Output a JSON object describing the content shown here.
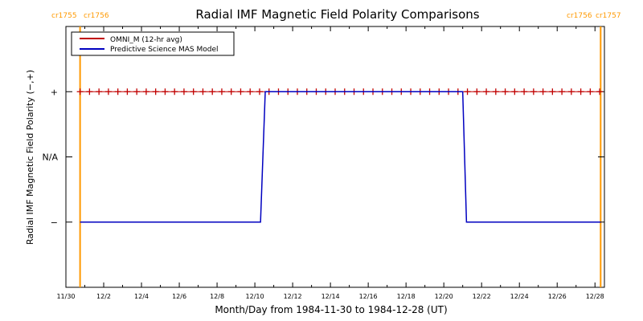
{
  "chart_data": {
    "type": "line",
    "title": "Radial IMF Magnetic Field Polarity Comparisons",
    "xlabel": "Month/Day from 1984-11-30 to 1984-12-28 (UT)",
    "ylabel": "Radial IMF Magnetic Field Polarity (−,+)",
    "x_tick_labels": [
      "11/30",
      "12/2",
      "12/4",
      "12/6",
      "12/8",
      "12/10",
      "12/12",
      "12/14",
      "12/16",
      "12/18",
      "12/20",
      "12/22",
      "12/24",
      "12/26",
      "12/28"
    ],
    "y_tick_labels": [
      "+",
      "N/A",
      "−"
    ],
    "ylim": [
      -2,
      2
    ],
    "xlim": [
      0,
      28.5
    ],
    "carrington_markers": [
      {
        "day": 0.75,
        "label_left": "cr1755",
        "label_right": "cr1756"
      },
      {
        "day": 28.3,
        "label_left": "cr1756",
        "label_right": "cr1757"
      }
    ],
    "series": [
      {
        "name": "OMNI_M (12-hr avg)",
        "color": "#c00000",
        "marker": "+",
        "x": [
          0.75,
          1.25,
          1.75,
          2.25,
          2.75,
          3.25,
          3.75,
          4.25,
          4.75,
          5.25,
          5.75,
          6.25,
          6.75,
          7.25,
          7.75,
          8.25,
          8.75,
          9.25,
          9.75,
          10.25,
          10.75,
          11.25,
          11.75,
          12.25,
          12.75,
          13.25,
          13.75,
          14.25,
          14.75,
          15.25,
          15.75,
          16.25,
          16.75,
          17.25,
          17.75,
          18.25,
          18.75,
          19.25,
          19.75,
          20.25,
          20.75,
          21.25,
          21.75,
          22.25,
          22.75,
          23.25,
          23.75,
          24.25,
          24.75,
          25.25,
          25.75,
          26.25,
          26.75,
          27.25,
          27.75,
          28.25
        ],
        "y": [
          1,
          1,
          1,
          1,
          1,
          1,
          1,
          1,
          1,
          1,
          1,
          1,
          1,
          1,
          1,
          1,
          1,
          1,
          1,
          1,
          1,
          1,
          1,
          1,
          1,
          1,
          1,
          1,
          1,
          1,
          1,
          1,
          1,
          1,
          1,
          1,
          1,
          1,
          1,
          1,
          1,
          1,
          1,
          1,
          1,
          1,
          1,
          1,
          1,
          1,
          1,
          1,
          1,
          1,
          1,
          1
        ]
      },
      {
        "name": "Predictive Science MAS Model",
        "color": "#0000c0",
        "x": [
          0.75,
          10.3,
          10.55,
          21.0,
          21.2,
          28.3
        ],
        "y": [
          -1,
          -1,
          1,
          1,
          -1,
          -1
        ]
      }
    ]
  }
}
